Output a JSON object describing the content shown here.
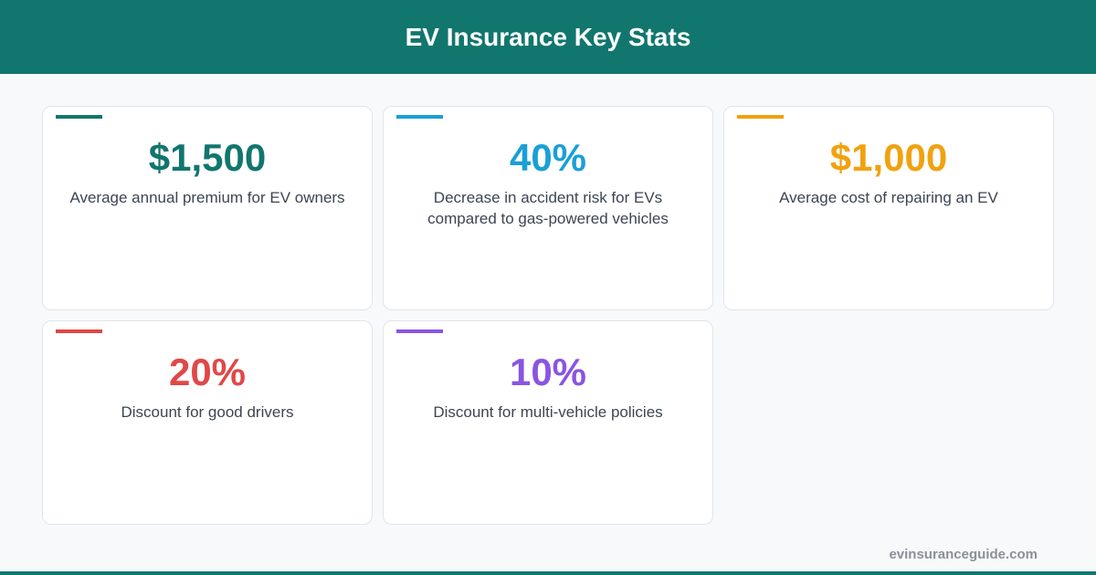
{
  "header": {
    "title": "EV Insurance Key Stats"
  },
  "cards": [
    {
      "value": "$1,500",
      "description": "Average annual premium for EV owners",
      "color": "#11766e"
    },
    {
      "value": "40%",
      "description": "Decrease in accident risk for EVs compared to gas-powered vehicles",
      "color": "#1a9fd8"
    },
    {
      "value": "$1,000",
      "description": "Average cost of repairing an EV",
      "color": "#f0a20f"
    },
    {
      "value": "20%",
      "description": "Discount for good drivers",
      "color": "#e04848"
    },
    {
      "value": "10%",
      "description": "Discount for multi-vehicle policies",
      "color": "#8a55e0"
    }
  ],
  "footer": {
    "source": "evinsuranceguide.com"
  }
}
